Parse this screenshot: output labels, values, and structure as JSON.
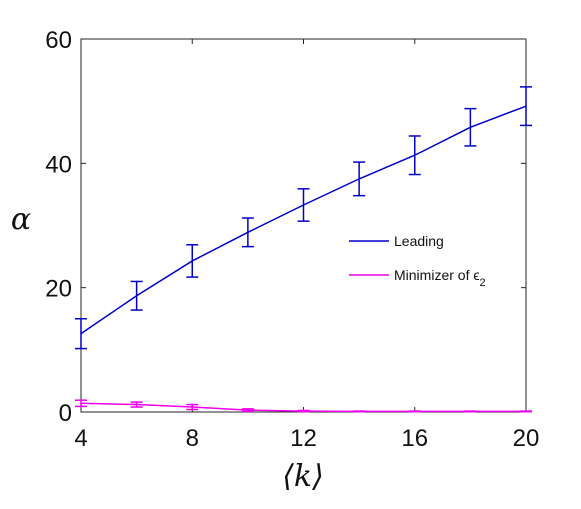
{
  "chart_data": {
    "type": "line",
    "xlabel": "⟨k⟩",
    "ylabel": "α",
    "xlim": [
      4,
      20
    ],
    "ylim": [
      0,
      60
    ],
    "xticks": [
      4,
      8,
      12,
      16,
      20
    ],
    "yticks": [
      0,
      20,
      40,
      60
    ],
    "grid": false,
    "legend_position": "middle-right",
    "series": [
      {
        "name": "Leading",
        "color": "#0000cc",
        "x": [
          4,
          6,
          8,
          10,
          12,
          14,
          16,
          18,
          20
        ],
        "y": [
          12.6,
          18.7,
          24.3,
          28.9,
          33.3,
          37.5,
          41.3,
          45.8,
          49.2
        ],
        "err": [
          2.4,
          2.3,
          2.6,
          2.3,
          2.6,
          2.7,
          3.1,
          3.0,
          3.1
        ]
      },
      {
        "name": "Minimizer of ϵ",
        "name_subscript": "2",
        "color": "#ee00ee",
        "x": [
          4,
          6,
          8,
          10,
          12,
          14,
          16,
          18,
          20
        ],
        "y": [
          1.4,
          1.2,
          0.8,
          0.3,
          0.15,
          0.1,
          0.1,
          0.1,
          0.1
        ],
        "err": [
          0.5,
          0.4,
          0.4,
          0.2,
          0.1,
          0.05,
          0.05,
          0.05,
          0.05
        ]
      }
    ]
  }
}
